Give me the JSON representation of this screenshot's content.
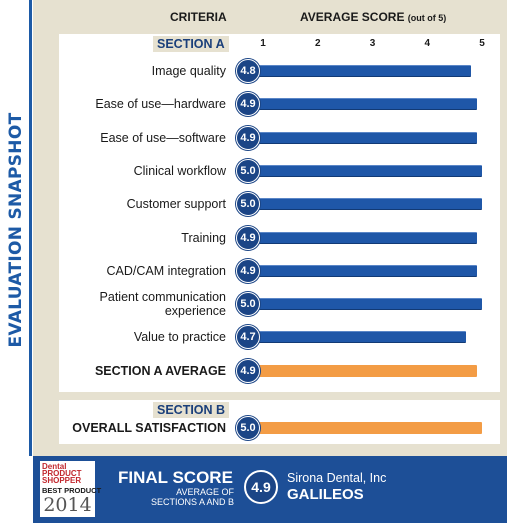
{
  "sidebar": {
    "title": "EVALUATION SNAPSHOT"
  },
  "header": {
    "criteria": "CRITERIA",
    "average_score": "AVERAGE SCORE (out of 5)"
  },
  "chart_data": {
    "type": "bar",
    "orientation": "horizontal",
    "xlim": [
      1,
      5
    ],
    "ticks": [
      "1",
      "2",
      "3",
      "4",
      "5"
    ],
    "sections": [
      {
        "label": "SECTION A",
        "rows": [
          {
            "label": "Image quality",
            "value": 4.8,
            "value_label": "4.8"
          },
          {
            "label": "Ease of use—hardware",
            "value": 4.9,
            "value_label": "4.9"
          },
          {
            "label": "Ease of use—software",
            "value": 4.9,
            "value_label": "4.9"
          },
          {
            "label": "Clinical workflow",
            "value": 5.0,
            "value_label": "5.0"
          },
          {
            "label": "Customer support",
            "value": 5.0,
            "value_label": "5.0"
          },
          {
            "label": "Training",
            "value": 4.9,
            "value_label": "4.9"
          },
          {
            "label": "CAD/CAM integration",
            "value": 4.9,
            "value_label": "4.9"
          },
          {
            "label": "Patient communication\nexperience",
            "value": 5.0,
            "value_label": "5.0"
          },
          {
            "label": "Value to practice",
            "value": 4.7,
            "value_label": "4.7"
          }
        ],
        "average": {
          "label": "SECTION A AVERAGE",
          "value": 4.9,
          "value_label": "4.9"
        }
      },
      {
        "label": "SECTION B",
        "rows": [
          {
            "label": "OVERALL SATISFACTION",
            "value": 5.0,
            "value_label": "5.0"
          }
        ]
      }
    ],
    "colors": {
      "item_bar": "#1f57a8",
      "summary_bar": "#f39c45",
      "badge": "#1b4586"
    }
  },
  "footer": {
    "logo_top": "Dental PRODUCT\nSHOPPER",
    "logo_mid": "BEST PRODUCT",
    "logo_year": "2014",
    "final_title": "FINAL SCORE",
    "final_subtitle": "AVERAGE OF SECTIONS A AND B",
    "final_score": "4.9",
    "company": "Sirona Dental, Inc",
    "product": "GALILEOS"
  }
}
